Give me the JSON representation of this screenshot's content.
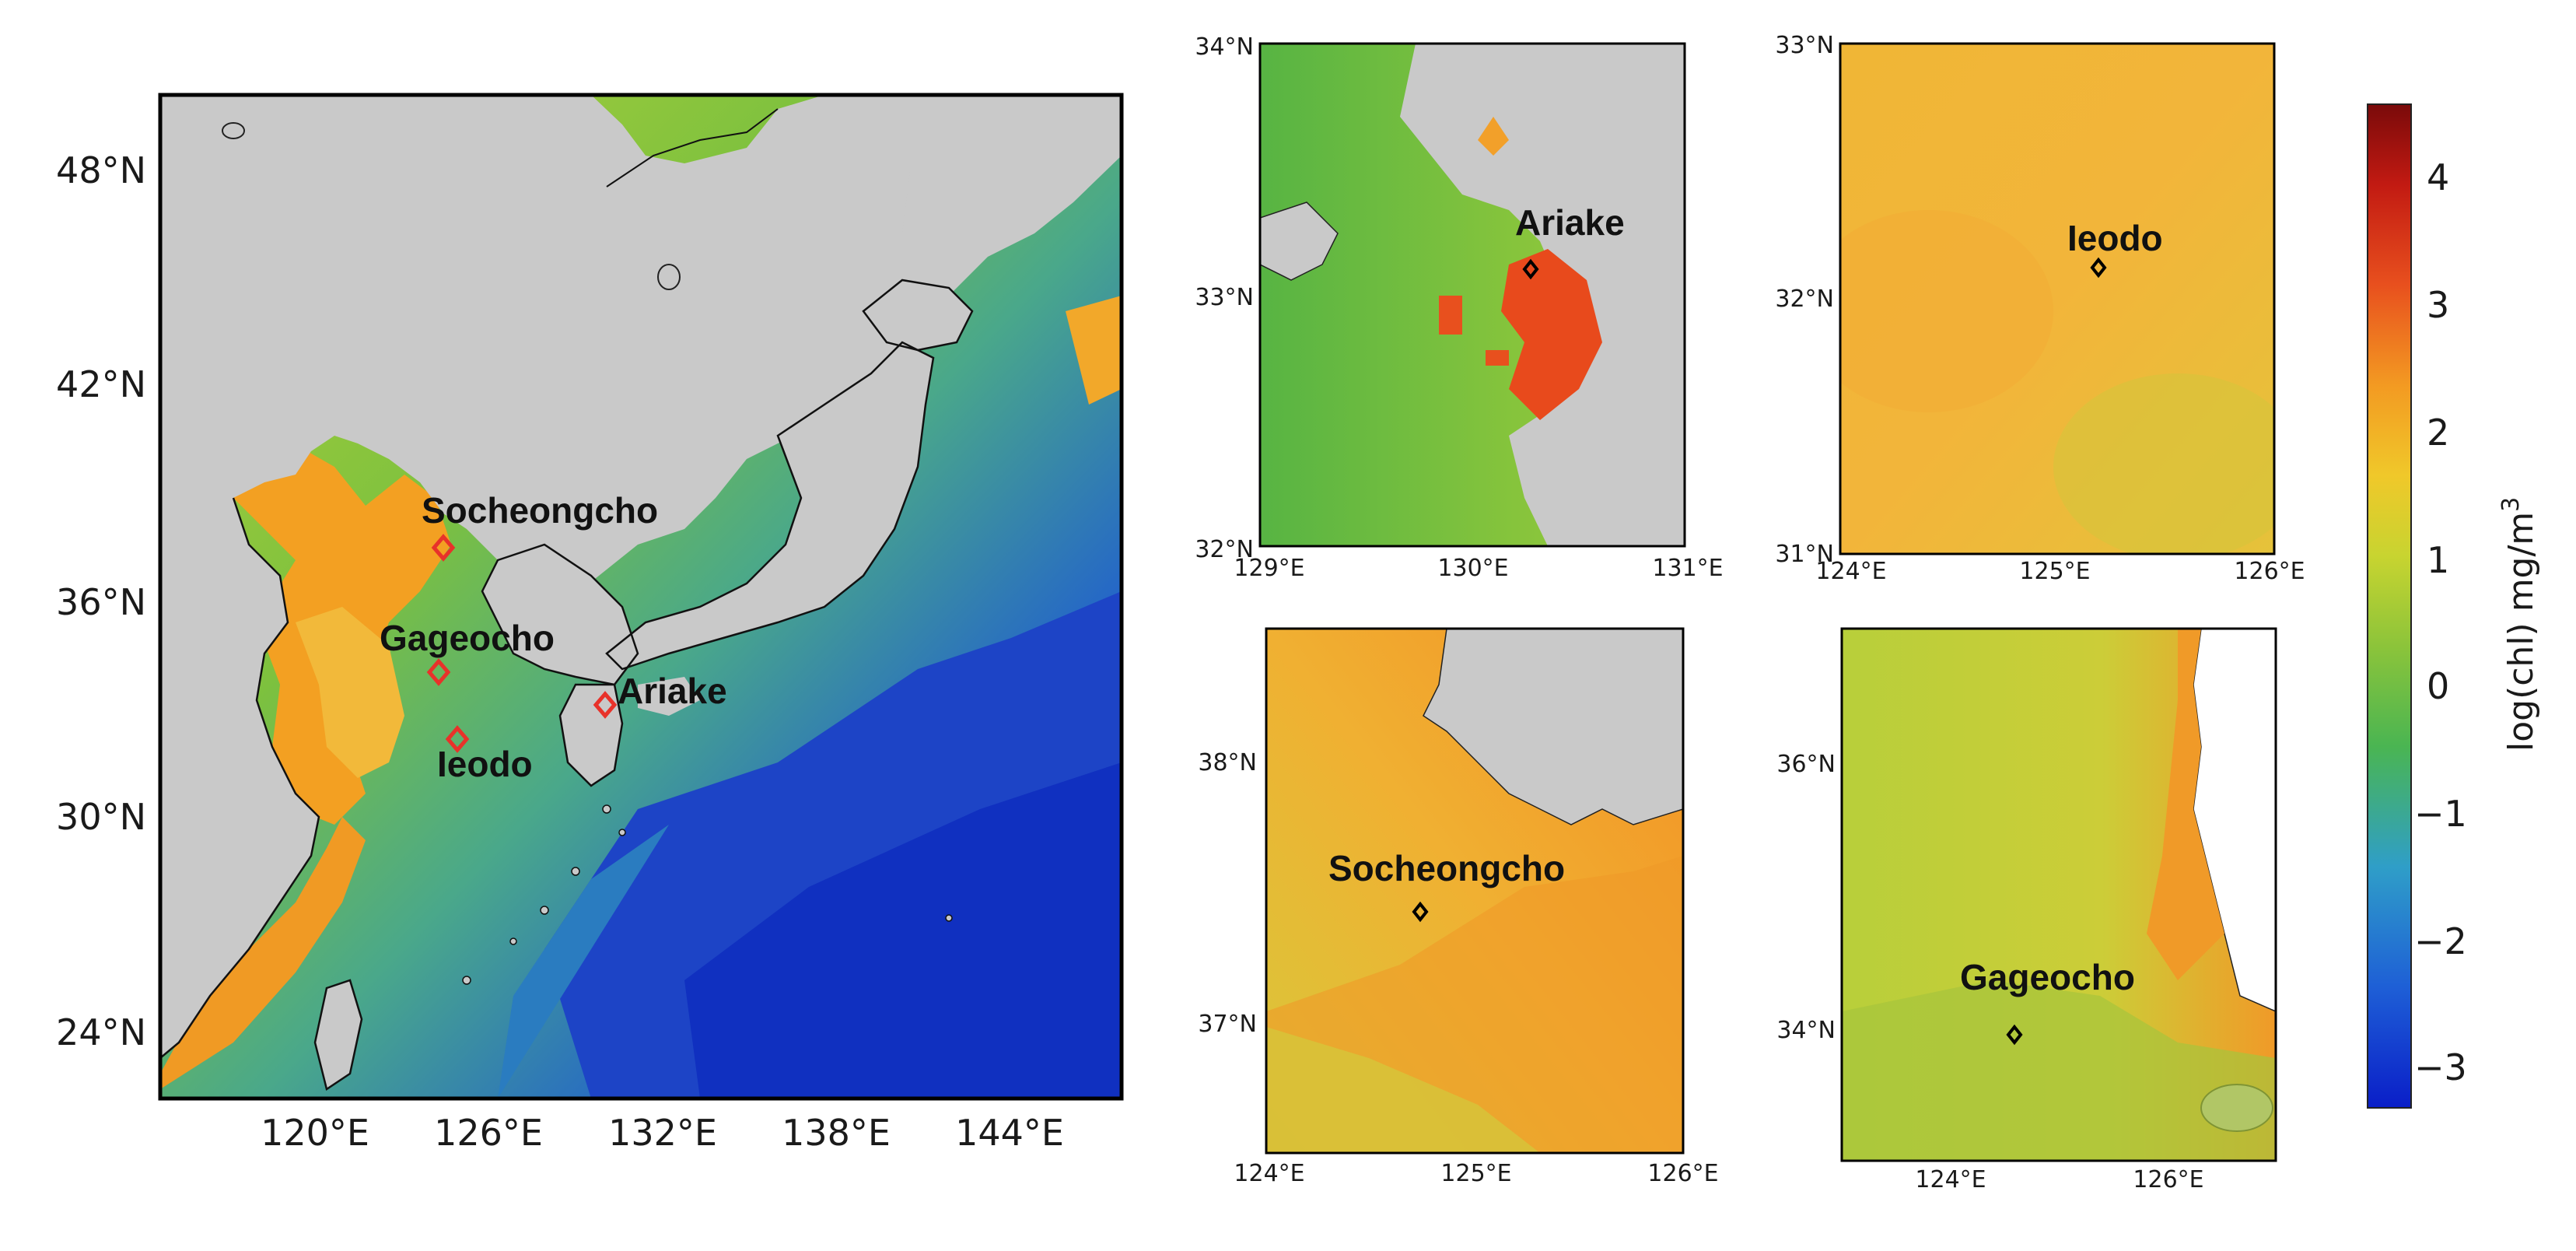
{
  "main_map": {
    "lat_ticks": [
      "48°N",
      "42°N",
      "36°N",
      "30°N",
      "24°N"
    ],
    "lon_ticks": [
      "120°E",
      "126°E",
      "132°E",
      "138°E",
      "144°E"
    ],
    "sites": [
      "Socheongcho",
      "Gageocho",
      "Ariake",
      "Ieodo"
    ],
    "marker_color": "#e8322a"
  },
  "panels": {
    "ariake": {
      "site": "Ariake",
      "lat_ticks": [
        "34°N",
        "33°N",
        "32°N"
      ],
      "lon_ticks": [
        "129°E",
        "130°E",
        "131°E"
      ]
    },
    "ieodo": {
      "site": "Ieodo",
      "lat_ticks": [
        "33°N",
        "32°N",
        "31°N"
      ],
      "lon_ticks": [
        "124°E",
        "125°E",
        "126°E"
      ]
    },
    "socheongcho": {
      "site": "Socheongcho",
      "lat_ticks": [
        "38°N",
        "37°N"
      ],
      "lon_ticks": [
        "124°E",
        "125°E",
        "126°E"
      ]
    },
    "gageocho": {
      "site": "Gageocho",
      "lat_ticks": [
        "36°N",
        "34°N"
      ],
      "lon_ticks": [
        "124°E",
        "126°E"
      ]
    }
  },
  "colorbar": {
    "ticks": [
      "4",
      "3",
      "2",
      "1",
      "0",
      "−1",
      "−2",
      "−3"
    ],
    "label_main": "log(chl)  mg/m",
    "label_sup": "3",
    "colormap": [
      "#0a1ec8",
      "#1e5fd6",
      "#2f9ec8",
      "#4ab552",
      "#8cc43a",
      "#c8d430",
      "#f0c82a",
      "#f39a22",
      "#e8501e",
      "#c21a12",
      "#7a0a0a"
    ]
  },
  "colors": {
    "land": "#c9c9c9",
    "open_ocean": "#1f4fc8",
    "shelf": "#6fbf3a",
    "coastal": "#f2a01c"
  }
}
